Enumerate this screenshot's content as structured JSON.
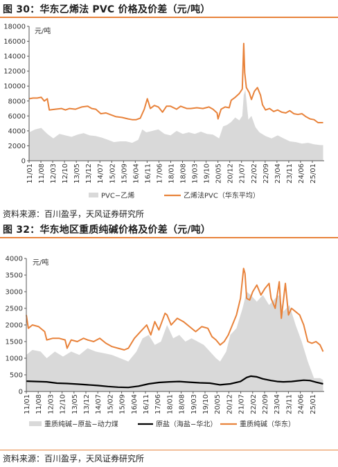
{
  "figures": [
    {
      "title": "图 30：华东乙烯法 PVC 价格及价差（元/吨）",
      "source": "资料来源：百川盈孚，天风证券研究所"
    },
    {
      "title": "图 32：华东地区重质纯碱价格及价差（元/吨）",
      "source": "资料来源：百川盈孚，天风证券研究所"
    }
  ],
  "chart_data": [
    {
      "type": "line",
      "unit_label": "元/吨",
      "ylim": [
        0,
        18000
      ],
      "yticks": [
        0,
        2000,
        4000,
        6000,
        8000,
        10000,
        12000,
        14000,
        16000,
        18000
      ],
      "xlim": [
        2011.0,
        2025.6
      ],
      "xtick_labels": [
        "11/01",
        "11/08",
        "12/03",
        "12/10",
        "13/05",
        "13/12",
        "14/07",
        "15/02",
        "15/09",
        "16/04",
        "16/11",
        "17/06",
        "18/01",
        "18/08",
        "19/03",
        "19/10",
        "20/05",
        "20/12",
        "21/07",
        "22/02",
        "22/09",
        "23/04",
        "23/11",
        "24/06",
        "25/01"
      ],
      "legend_position": "bottom",
      "series": [
        {
          "name": "PVC−乙烯",
          "style": "area",
          "color": "#d9d9d9",
          "x": [
            2011.0,
            2011.3,
            2011.6,
            2011.9,
            2012.2,
            2012.5,
            2012.8,
            2013.1,
            2013.4,
            2013.7,
            2014.0,
            2014.3,
            2014.6,
            2014.9,
            2015.2,
            2015.5,
            2015.8,
            2016.1,
            2016.4,
            2016.6,
            2016.8,
            2017.1,
            2017.4,
            2017.7,
            2018.0,
            2018.3,
            2018.6,
            2018.9,
            2019.2,
            2019.5,
            2019.8,
            2020.1,
            2020.4,
            2020.6,
            2020.8,
            2021.0,
            2021.2,
            2021.4,
            2021.55,
            2021.62,
            2021.7,
            2021.85,
            2022.0,
            2022.2,
            2022.4,
            2022.7,
            2023.0,
            2023.3,
            2023.6,
            2023.9,
            2024.2,
            2024.5,
            2024.8,
            2025.1,
            2025.4,
            2025.55
          ],
          "values": [
            3800,
            4200,
            4400,
            3600,
            3000,
            3600,
            3400,
            3200,
            3500,
            3700,
            3400,
            3300,
            3100,
            2800,
            2500,
            2600,
            2600,
            2400,
            2800,
            4200,
            3800,
            4000,
            4200,
            3600,
            3400,
            4000,
            3600,
            3800,
            3600,
            3900,
            3600,
            3500,
            3000,
            4600,
            4800,
            5200,
            5800,
            5400,
            6000,
            8800,
            9500,
            5500,
            6000,
            4500,
            3800,
            3300,
            3000,
            3400,
            3000,
            2600,
            2500,
            2300,
            2400,
            2200,
            2100,
            2100
          ]
        },
        {
          "name": "乙烯法PVC（华东平均）",
          "style": "line",
          "color": "#e8823a",
          "x": [
            2011.0,
            2011.2,
            2011.4,
            2011.6,
            2011.75,
            2011.9,
            2012.0,
            2012.3,
            2012.6,
            2012.8,
            2013.0,
            2013.3,
            2013.6,
            2013.9,
            2014.1,
            2014.3,
            2014.55,
            2014.8,
            2015.0,
            2015.3,
            2015.6,
            2015.9,
            2016.1,
            2016.3,
            2016.5,
            2016.7,
            2016.85,
            2017.0,
            2017.2,
            2017.4,
            2017.6,
            2017.8,
            2018.0,
            2018.3,
            2018.5,
            2018.8,
            2019.0,
            2019.3,
            2019.6,
            2019.9,
            2020.1,
            2020.3,
            2020.35,
            2020.5,
            2020.7,
            2020.9,
            2021.0,
            2021.2,
            2021.4,
            2021.55,
            2021.62,
            2021.67,
            2021.75,
            2021.9,
            2022.0,
            2022.15,
            2022.3,
            2022.45,
            2022.55,
            2022.7,
            2022.9,
            2023.1,
            2023.3,
            2023.5,
            2023.7,
            2023.9,
            2024.1,
            2024.3,
            2024.5,
            2024.7,
            2024.9,
            2025.1,
            2025.3,
            2025.55
          ],
          "values": [
            8300,
            8400,
            8400,
            8500,
            8000,
            8300,
            6800,
            6900,
            7000,
            6800,
            7000,
            6900,
            7200,
            7300,
            7000,
            6900,
            6300,
            6400,
            6200,
            5900,
            5800,
            5600,
            5500,
            5500,
            5700,
            6900,
            8300,
            7000,
            7400,
            7200,
            6500,
            7300,
            7300,
            6900,
            7300,
            7000,
            7000,
            7100,
            7000,
            7200,
            6900,
            6400,
            5600,
            6900,
            7200,
            7100,
            8100,
            8500,
            9000,
            9600,
            15700,
            11800,
            9800,
            9100,
            8200,
            9300,
            9800,
            8800,
            7500,
            6800,
            7000,
            6600,
            6800,
            6500,
            6400,
            6700,
            6300,
            6200,
            6300,
            5900,
            5600,
            5500,
            5100,
            5100
          ]
        }
      ]
    },
    {
      "type": "line",
      "unit_label": "元/吨",
      "ylim": [
        0,
        4000
      ],
      "yticks": [
        0,
        500,
        1000,
        1500,
        2000,
        2500,
        3000,
        3500,
        4000
      ],
      "xlim": [
        2011.0,
        2025.6
      ],
      "xtick_labels": [
        "11/01",
        "11/08",
        "12/03",
        "12/10",
        "13/05",
        "13/12",
        "14/07",
        "15/02",
        "15/09",
        "16/04",
        "16/11",
        "17/06",
        "18/01",
        "18/08",
        "19/03",
        "19/10",
        "20/05",
        "20/12",
        "21/07",
        "22/02",
        "22/09",
        "23/04",
        "23/11",
        "24/06",
        "25/01"
      ],
      "legend_position": "bottom",
      "series": [
        {
          "name": "重质纯碱−原盐−动力煤",
          "style": "area",
          "color": "#d9d9d9",
          "x": [
            2011.0,
            2011.3,
            2011.7,
            2012.0,
            2012.4,
            2012.8,
            2013.2,
            2013.6,
            2014.0,
            2014.4,
            2014.8,
            2015.2,
            2015.6,
            2016.0,
            2016.4,
            2016.7,
            2017.0,
            2017.3,
            2017.6,
            2017.9,
            2018.2,
            2018.5,
            2018.8,
            2019.1,
            2019.4,
            2019.7,
            2020.0,
            2020.3,
            2020.5,
            2020.8,
            2021.0,
            2021.3,
            2021.6,
            2021.8,
            2022.0,
            2022.3,
            2022.6,
            2022.9,
            2023.2,
            2023.4,
            2023.6,
            2023.9,
            2024.2,
            2024.5,
            2024.8,
            2025.1,
            2025.4,
            2025.55
          ],
          "values": [
            1100,
            1250,
            1200,
            1000,
            1200,
            1050,
            1200,
            1100,
            1300,
            1200,
            1150,
            1100,
            1000,
            900,
            1200,
            1600,
            1700,
            1400,
            1500,
            2000,
            1600,
            1700,
            1500,
            1600,
            1500,
            1400,
            1200,
            1000,
            900,
            1200,
            1700,
            1900,
            2500,
            3000,
            2900,
            2700,
            2900,
            2600,
            2800,
            2900,
            2400,
            2600,
            2000,
            1500,
            900,
            400,
            400,
            350
          ]
        },
        {
          "name": "原盐（海盐−华北）",
          "style": "line",
          "color": "#000000",
          "x": [
            2011.0,
            2011.5,
            2012.0,
            2012.5,
            2013.0,
            2013.5,
            2014.0,
            2014.5,
            2015.0,
            2015.5,
            2016.0,
            2016.5,
            2017.0,
            2017.5,
            2018.0,
            2018.5,
            2019.0,
            2019.5,
            2020.0,
            2020.5,
            2021.0,
            2021.5,
            2021.8,
            2022.0,
            2022.3,
            2022.6,
            2023.0,
            2023.3,
            2023.6,
            2024.0,
            2024.3,
            2024.6,
            2024.9,
            2025.2,
            2025.55
          ],
          "values": [
            310,
            300,
            290,
            250,
            240,
            220,
            200,
            180,
            150,
            130,
            120,
            160,
            230,
            270,
            290,
            300,
            280,
            260,
            250,
            200,
            230,
            300,
            420,
            460,
            440,
            380,
            330,
            300,
            290,
            300,
            320,
            340,
            330,
            280,
            230
          ]
        },
        {
          "name": "重质纯碱（华东）",
          "style": "line",
          "color": "#e8823a",
          "x": [
            2011.0,
            2011.1,
            2011.3,
            2011.6,
            2011.9,
            2012.0,
            2012.3,
            2012.6,
            2012.9,
            2013.0,
            2013.2,
            2013.5,
            2013.8,
            2014.0,
            2014.3,
            2014.6,
            2014.9,
            2015.2,
            2015.5,
            2015.8,
            2016.0,
            2016.3,
            2016.6,
            2016.9,
            2017.1,
            2017.3,
            2017.5,
            2017.8,
            2017.9,
            2018.1,
            2018.4,
            2018.7,
            2019.0,
            2019.3,
            2019.6,
            2019.9,
            2020.1,
            2020.3,
            2020.5,
            2020.7,
            2020.9,
            2021.1,
            2021.3,
            2021.5,
            2021.65,
            2021.72,
            2021.8,
            2021.95,
            2022.1,
            2022.3,
            2022.5,
            2022.7,
            2022.9,
            2023.0,
            2023.2,
            2023.4,
            2023.5,
            2023.7,
            2023.85,
            2024.0,
            2024.2,
            2024.4,
            2024.6,
            2024.8,
            2025.0,
            2025.2,
            2025.4,
            2025.55
          ],
          "values": [
            2300,
            1900,
            2000,
            1950,
            1800,
            1550,
            1600,
            1600,
            1550,
            1300,
            1550,
            1500,
            1600,
            1550,
            1500,
            1600,
            1450,
            1350,
            1300,
            1250,
            1300,
            1600,
            1800,
            2000,
            1700,
            2100,
            1850,
            2350,
            2300,
            2000,
            2200,
            2100,
            1950,
            1800,
            1950,
            1900,
            1650,
            1550,
            1400,
            1500,
            1700,
            2000,
            2300,
            2800,
            3700,
            3550,
            2800,
            2750,
            3000,
            3200,
            2900,
            3100,
            3250,
            2800,
            2500,
            3300,
            2200,
            3250,
            2300,
            2500,
            2400,
            2300,
            2000,
            1500,
            1450,
            1500,
            1400,
            1200
          ]
        }
      ]
    }
  ]
}
